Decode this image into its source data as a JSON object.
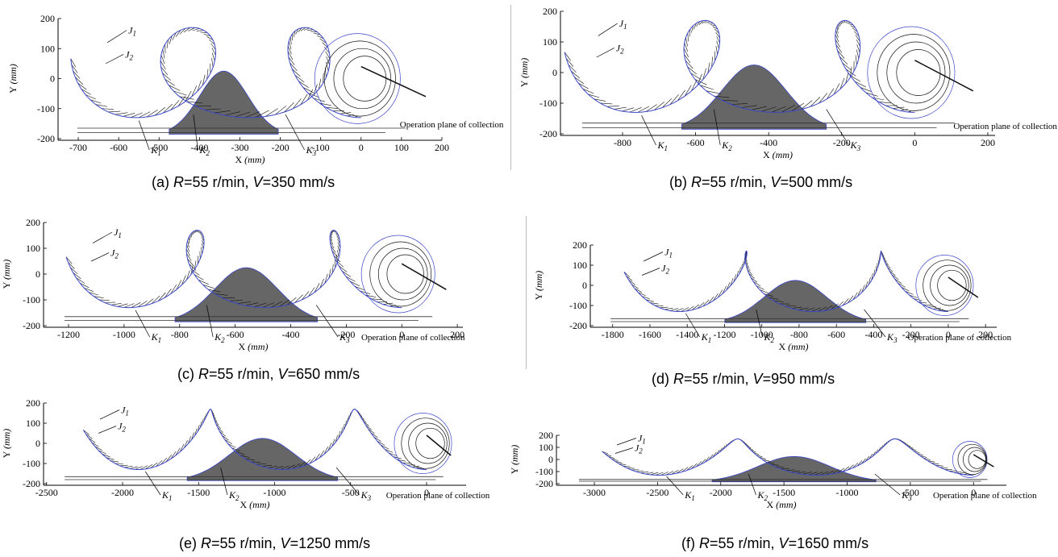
{
  "chart_data": [
    {
      "id": "a",
      "type": "line",
      "caption": {
        "prefix": "(a) ",
        "r_label": "R",
        "r_text": "=55 r/min, ",
        "v_label": "V",
        "v_text": "=350 mm/s"
      },
      "xlabel": "X",
      "xunit": "(mm)",
      "ylabel": "Y",
      "yunit": "(mm)",
      "xlim": [
        -750,
        200
      ],
      "ylim": [
        -200,
        200
      ],
      "xticks": [
        -700,
        -600,
        -500,
        -400,
        -300,
        -200,
        -100,
        0,
        100,
        200
      ],
      "yticks": [
        -200,
        -100,
        0,
        100,
        200
      ],
      "loop_centers": [
        -640,
        -340,
        0
      ],
      "annotations": {
        "J1": "J",
        "J1_sub": "1",
        "J2": "J",
        "J2_sub": "2",
        "K1": "K",
        "K1_sub": "1",
        "K2": "K",
        "K2_sub": "2",
        "K3": "K",
        "K3_sub": "3"
      },
      "operation_plane_label": "Operation plane of collection",
      "colors": {
        "outline": "#3b47c8",
        "spokes": "#111111",
        "fill": "#666666"
      }
    },
    {
      "id": "b",
      "type": "line",
      "caption": {
        "prefix": "(b) ",
        "r_label": "R",
        "r_text": "=55 r/min, ",
        "v_label": "V",
        "v_text": "=500 mm/s"
      },
      "xlabel": "X",
      "xunit": "(mm)",
      "ylabel": "Y",
      "yunit": "(mm)",
      "xlim": [
        -970,
        220
      ],
      "ylim": [
        -200,
        200
      ],
      "xticks": [
        -800,
        -600,
        -400,
        -200,
        0,
        200
      ],
      "yticks": [
        -200,
        -100,
        0,
        100,
        200
      ],
      "loop_centers": [
        -880,
        -440,
        0
      ],
      "annotations": {
        "J1": "J",
        "J1_sub": "1",
        "J2": "J",
        "J2_sub": "2",
        "K1": "K",
        "K1_sub": "1",
        "K2": "K",
        "K2_sub": "2",
        "K3": "K",
        "K3_sub": "3"
      },
      "operation_plane_label": "Operation plane of collection",
      "colors": {
        "outline": "#3b47c8",
        "spokes": "#111111",
        "fill": "#666666"
      }
    },
    {
      "id": "c",
      "type": "line",
      "caption": {
        "prefix": "(c) ",
        "r_label": "R",
        "r_text": "=55 r/min, ",
        "v_label": "V",
        "v_text": "=650 mm/s"
      },
      "xlabel": "X",
      "xunit": "(mm)",
      "ylabel": "Y",
      "yunit": "(mm)",
      "xlim": [
        -1290,
        220
      ],
      "ylim": [
        -200,
        200
      ],
      "xticks": [
        -1200,
        -1000,
        -800,
        -600,
        -400,
        -200,
        0,
        200
      ],
      "yticks": [
        -200,
        -100,
        0,
        100,
        200
      ],
      "loop_centers": [
        -1130,
        -560,
        0
      ],
      "annotations": {
        "J1": "J",
        "J1_sub": "1",
        "J2": "J",
        "J2_sub": "2",
        "K1": "K",
        "K1_sub": "1",
        "K2": "K",
        "K2_sub": "2",
        "K3": "K",
        "K3_sub": "3"
      },
      "operation_plane_label": "Operation plane of collection",
      "colors": {
        "outline": "#3b47c8",
        "spokes": "#111111",
        "fill": "#666666"
      }
    },
    {
      "id": "d",
      "type": "line",
      "caption": {
        "prefix": "(d)  ",
        "r_label": "R",
        "r_text": "=55 r/min, ",
        "v_label": "V",
        "v_text": "=950 mm/s"
      },
      "xlabel": "X",
      "xunit": "(mm)",
      "ylabel": "Y",
      "yunit": "(mm)",
      "xlim": [
        -1920,
        260
      ],
      "ylim": [
        -200,
        200
      ],
      "xticks": [
        -1800,
        -1600,
        -1400,
        -1200,
        -1000,
        -800,
        -600,
        -400,
        -200,
        0,
        200
      ],
      "yticks": [
        -200,
        -100,
        0,
        100,
        200
      ],
      "loop_centers": [
        -1660,
        -820,
        0
      ],
      "annotations": {
        "J1": "J",
        "J1_sub": "1",
        "J2": "J",
        "J2_sub": "2",
        "K1": "K",
        "K1_sub": "1",
        "K2": "K",
        "K2_sub": "2",
        "K3": "K",
        "K3_sub": "3"
      },
      "operation_plane_label": "Operation plane of collection",
      "colors": {
        "outline": "#3b47c8",
        "spokes": "#111111",
        "fill": "#666666"
      }
    },
    {
      "id": "e",
      "type": "line",
      "caption": {
        "prefix": "(e) ",
        "r_label": "R",
        "r_text": "=55 r/min, ",
        "v_label": "V",
        "v_text": "=1250 mm/s"
      },
      "xlabel": "X",
      "xunit": "(mm)",
      "ylabel": "Y",
      "yunit": "(mm)",
      "xlim": [
        -2520,
        260
      ],
      "ylim": [
        -200,
        200
      ],
      "xticks": [
        -2500,
        -2000,
        -1500,
        -1000,
        -500,
        0
      ],
      "yticks": [
        -200,
        -100,
        0,
        100,
        200
      ],
      "loop_centers": [
        -2180,
        -1080,
        0
      ],
      "annotations": {
        "J1": "J",
        "J1_sub": "1",
        "J2": "J",
        "J2_sub": "2",
        "K1": "K",
        "K1_sub": "1",
        "K2": "K",
        "K2_sub": "2",
        "K3": "K",
        "K3_sub": "3"
      },
      "operation_plane_label": "Operation plane of collection",
      "colors": {
        "outline": "#3b47c8",
        "spokes": "#111111",
        "fill": "#666666"
      }
    },
    {
      "id": "f",
      "type": "line",
      "caption": {
        "prefix": "(f) ",
        "r_label": "R",
        "r_text": "=55 r/min, ",
        "v_label": "V",
        "v_text": "=1650 mm/s"
      },
      "xlabel": "X",
      "xunit": "(mm)",
      "ylabel": "Y",
      "yunit": "(mm)",
      "xlim": [
        -3300,
        260
      ],
      "ylim": [
        -200,
        200
      ],
      "xticks": [
        -3000,
        -2500,
        -2000,
        -1500,
        -1000,
        -500,
        0
      ],
      "yticks": [
        -200,
        -100,
        0,
        100,
        200
      ],
      "loop_centers": [
        -2860,
        -1420,
        0
      ],
      "annotations": {
        "J1": "J",
        "J1_sub": "1",
        "J2": "J",
        "J2_sub": "2",
        "K1": "K",
        "K1_sub": "1",
        "K2": "K",
        "K2_sub": "2",
        "K3": "K",
        "K3_sub": "3"
      },
      "operation_plane_label": "Operation plane of collection",
      "colors": {
        "outline": "#3b47c8",
        "spokes": "#111111",
        "fill": "#666666"
      }
    }
  ]
}
